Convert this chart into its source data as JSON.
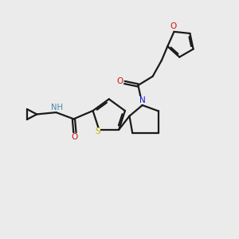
{
  "bg_color": "#ebebeb",
  "bond_color": "#1a1a1a",
  "S_color": "#b8b800",
  "N_color": "#1414cc",
  "O_color": "#cc1414",
  "NH_color": "#4488aa",
  "line_width": 1.6,
  "dbo": 0.06,
  "xlim": [
    0,
    10
  ],
  "ylim": [
    0,
    10
  ]
}
